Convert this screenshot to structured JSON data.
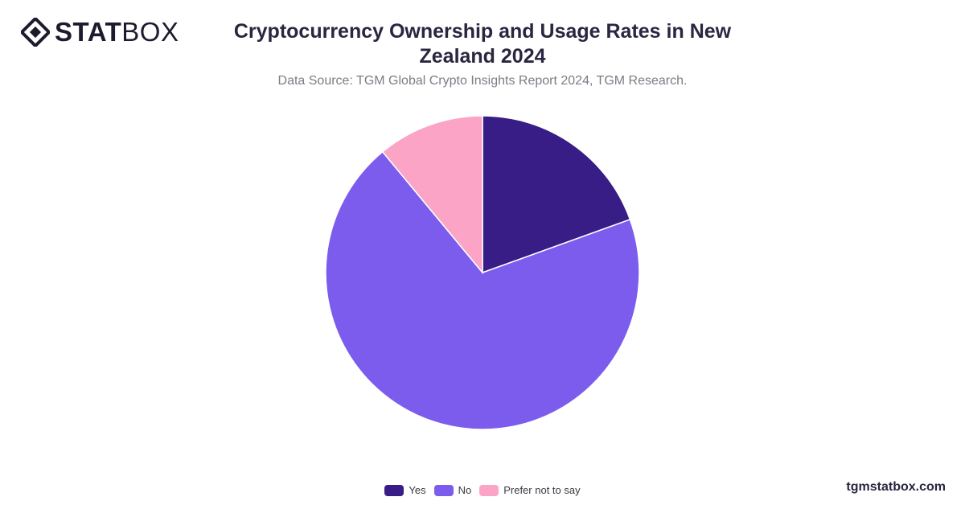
{
  "header": {
    "logo_stat": "STAT",
    "logo_box": "BOX",
    "title": "Cryptocurrency Ownership and Usage Rates in New Zealand 2024",
    "subtitle": "Data Source: TGM Global Crypto Insights Report 2024, TGM Research."
  },
  "footer": {
    "brand_url": "tgmstatbox.com"
  },
  "chart_data": {
    "type": "pie",
    "title": "Cryptocurrency Ownership and Usage Rates in New Zealand 2024",
    "categories": [
      "Yes",
      "No",
      "Prefer not to say"
    ],
    "values": [
      19.5,
      69.5,
      11.0
    ],
    "colors": [
      "#371d85",
      "#7b5ced",
      "#fba4c6"
    ],
    "legend_position": "bottom",
    "start_angle": "top, clockwise"
  }
}
